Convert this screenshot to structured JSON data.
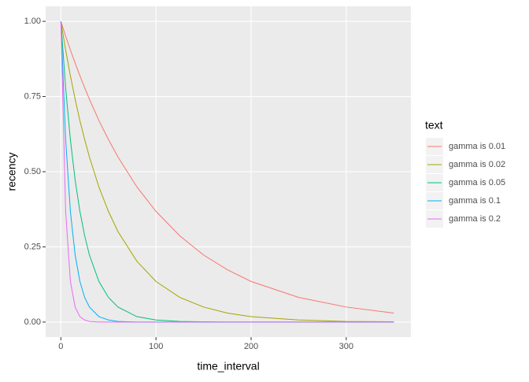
{
  "chart_data": {
    "type": "line",
    "x_label": "time_interval",
    "y_label": "recency",
    "legend_title": "text",
    "x": [
      0,
      5,
      10,
      15,
      20,
      25,
      30,
      40,
      50,
      60,
      80,
      100,
      125,
      150,
      175,
      200,
      250,
      300,
      350
    ],
    "series": [
      {
        "name": "gamma is 0.01",
        "color": "#F8766D",
        "values": [
          1,
          0.951,
          0.905,
          0.861,
          0.819,
          0.779,
          0.741,
          0.67,
          0.607,
          0.549,
          0.449,
          0.368,
          0.287,
          0.223,
          0.174,
          0.135,
          0.082,
          0.05,
          0.03
        ]
      },
      {
        "name": "gamma is 0.02",
        "color": "#A3A500",
        "values": [
          1,
          0.905,
          0.819,
          0.741,
          0.67,
          0.607,
          0.549,
          0.449,
          0.368,
          0.301,
          0.202,
          0.135,
          0.082,
          0.05,
          0.03,
          0.018,
          0.007,
          0.002,
          0.001
        ]
      },
      {
        "name": "gamma is 0.05",
        "color": "#00BF7D",
        "values": [
          1,
          0.779,
          0.607,
          0.472,
          0.368,
          0.287,
          0.223,
          0.135,
          0.082,
          0.05,
          0.018,
          0.007,
          0.002,
          0.001,
          0,
          0,
          0,
          0,
          0
        ]
      },
      {
        "name": "gamma is 0.1",
        "color": "#00B0F6",
        "values": [
          1,
          0.607,
          0.368,
          0.223,
          0.135,
          0.082,
          0.05,
          0.018,
          0.007,
          0.002,
          0,
          0,
          0,
          0,
          0,
          0,
          0,
          0,
          0
        ]
      },
      {
        "name": "gamma is 0.2",
        "color": "#E76BF3",
        "values": [
          1,
          0.368,
          0.135,
          0.05,
          0.018,
          0.007,
          0.002,
          0,
          0,
          0,
          0,
          0,
          0,
          0,
          0,
          0,
          0,
          0,
          0
        ]
      }
    ],
    "xlim": [
      -16,
      368
    ],
    "ylim": [
      -0.05,
      1.05
    ],
    "xticks": [
      0,
      100,
      200,
      300
    ],
    "yticks": [
      {
        "value": 0,
        "label": "0.00"
      },
      {
        "value": 0.25,
        "label": "0.25"
      },
      {
        "value": 0.5,
        "label": "0.50"
      },
      {
        "value": 0.75,
        "label": "0.75"
      },
      {
        "value": 1,
        "label": "1.00"
      }
    ],
    "grid": true,
    "legend_position": "right"
  }
}
